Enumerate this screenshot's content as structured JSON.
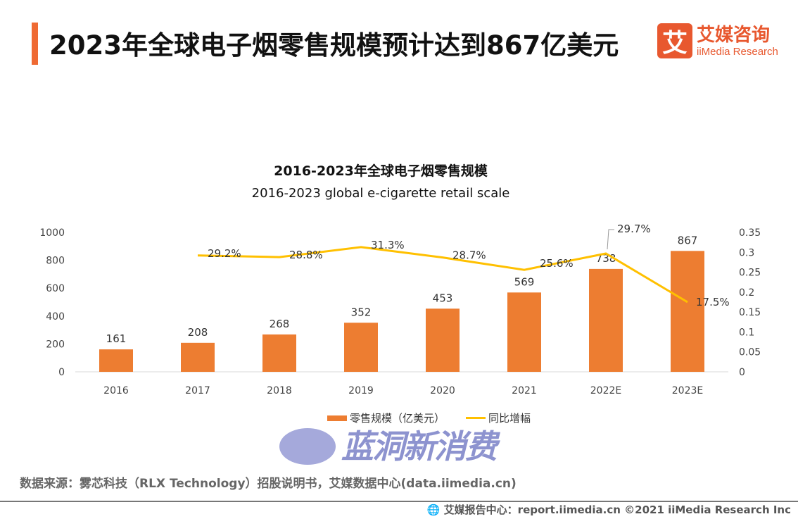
{
  "header": {
    "title": "2023年全球电子烟零售规模预计达到867亿美元",
    "logo_cn": "艾媒咨询",
    "logo_en": "iiMedia Research",
    "logo_mark": "艾"
  },
  "chart_data": {
    "type": "bar+line",
    "title": "2016-2023年全球电子烟零售规模",
    "subtitle": "2016-2023 global e-cigarette retail scale",
    "categories": [
      "2016",
      "2017",
      "2018",
      "2019",
      "2020",
      "2021",
      "2022E",
      "2023E"
    ],
    "series": [
      {
        "name": "零售规模（亿美元）",
        "type": "bar",
        "axis": "left",
        "color": "#ed7d31",
        "values": [
          161,
          208,
          268,
          352,
          453,
          569,
          738,
          867
        ]
      },
      {
        "name": "同比增幅",
        "type": "line",
        "axis": "right",
        "color": "#ffc000",
        "values": [
          null,
          0.292,
          0.288,
          0.313,
          0.287,
          0.256,
          0.297,
          0.175
        ],
        "labels": [
          "",
          "29.2%",
          "28.8%",
          "31.3%",
          "28.7%",
          "25.6%",
          "29.7%",
          "17.5%"
        ]
      }
    ],
    "left_axis": {
      "ylim": [
        0,
        1000
      ],
      "ticks": [
        "0",
        "200",
        "400",
        "600",
        "800",
        "1000"
      ]
    },
    "right_axis": {
      "ylim": [
        0,
        0.35
      ],
      "ticks": [
        "0",
        "0.05",
        "0.1",
        "0.15",
        "0.2",
        "0.25",
        "0.3",
        "0.35"
      ]
    },
    "grid": false,
    "legend": "bottom"
  },
  "watermark": "蓝洞新消费",
  "source": "数据来源：雾芯科技（RLX Technology）招股说明书，艾媒数据中心(data.iimedia.cn)",
  "footer": "艾媒报告中心：report.iimedia.cn   ©2021  iiMedia Research  Inc"
}
